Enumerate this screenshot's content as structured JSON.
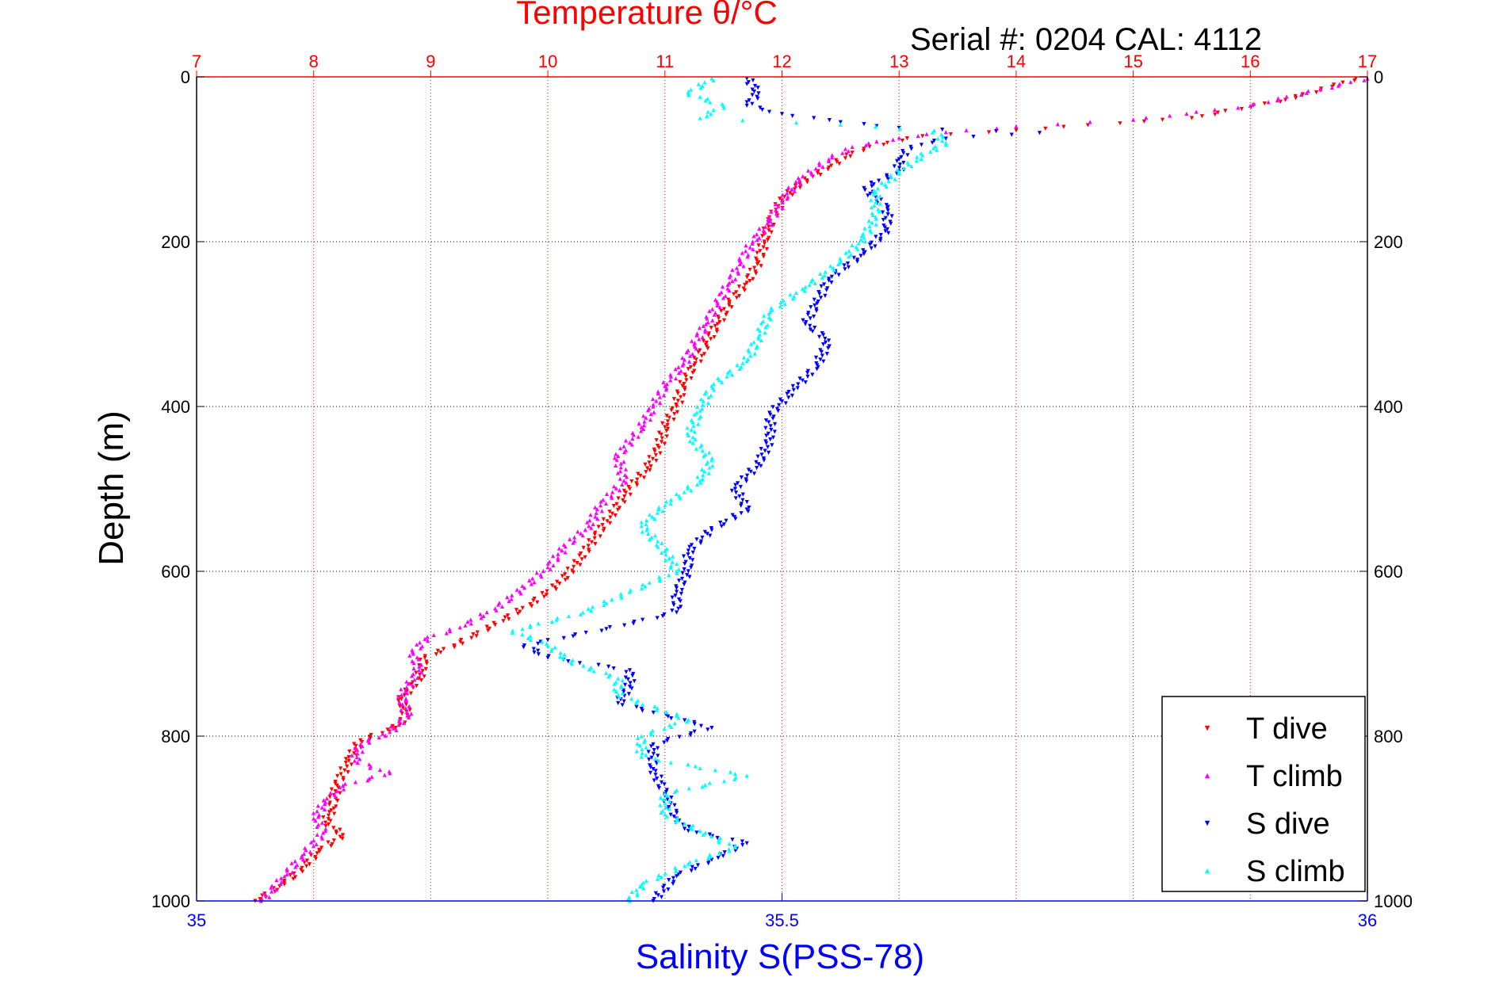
{
  "chart_data": {
    "type": "scatter",
    "title": "Temperature θ/°C",
    "subtitle": "Serial #: 0204  CAL: 4112",
    "ylabel": "Depth (m)",
    "xlabel": "Salinity S(PSS-78)",
    "grid": true,
    "legend_position": "bottom-right",
    "y_axis": {
      "label": "Depth (m)",
      "range": [
        0,
        1000
      ],
      "inverted": true,
      "ticks": [
        0,
        200,
        400,
        600,
        800,
        1000
      ]
    },
    "x_top_axis": {
      "quantity": "Temperature",
      "range": [
        7,
        17
      ],
      "ticks": [
        7,
        8,
        9,
        10,
        11,
        12,
        13,
        14,
        15,
        16,
        17
      ],
      "color": "#ff0000"
    },
    "x_bottom_axis": {
      "label": "Salinity S(PSS-78)",
      "range": [
        35,
        36
      ],
      "ticks": [
        35,
        35.5,
        36
      ],
      "tick_labels": [
        "35",
        "35.5",
        "36"
      ],
      "color": "#0000ff"
    },
    "series": [
      {
        "name": "T dive",
        "axis": "temperature",
        "color": "#ff0000",
        "marker": "down-triangle",
        "points": [
          [
            16.9,
            2
          ],
          [
            16.7,
            12
          ],
          [
            16.3,
            28
          ],
          [
            15.5,
            50
          ],
          [
            14.0,
            65
          ],
          [
            13.2,
            72
          ],
          [
            12.9,
            80
          ],
          [
            12.6,
            92
          ],
          [
            12.4,
            110
          ],
          [
            12.15,
            130
          ],
          [
            12.0,
            150
          ],
          [
            11.9,
            175
          ],
          [
            11.85,
            200
          ],
          [
            11.8,
            225
          ],
          [
            11.7,
            250
          ],
          [
            11.55,
            275
          ],
          [
            11.45,
            300
          ],
          [
            11.35,
            325
          ],
          [
            11.25,
            350
          ],
          [
            11.15,
            375
          ],
          [
            11.1,
            400
          ],
          [
            11.0,
            425
          ],
          [
            10.95,
            450
          ],
          [
            10.85,
            475
          ],
          [
            10.7,
            500
          ],
          [
            10.55,
            530
          ],
          [
            10.4,
            560
          ],
          [
            10.25,
            590
          ],
          [
            10.1,
            615
          ],
          [
            9.85,
            640
          ],
          [
            9.55,
            665
          ],
          [
            9.2,
            690
          ],
          [
            8.95,
            705
          ],
          [
            8.9,
            730
          ],
          [
            8.75,
            755
          ],
          [
            8.8,
            775
          ],
          [
            8.7,
            790
          ],
          [
            8.4,
            805
          ],
          [
            8.3,
            830
          ],
          [
            8.2,
            860
          ],
          [
            8.15,
            890
          ],
          [
            8.1,
            905
          ],
          [
            8.25,
            920
          ],
          [
            8.05,
            940
          ],
          [
            7.9,
            960
          ],
          [
            7.75,
            980
          ],
          [
            7.5,
            1000
          ]
        ]
      },
      {
        "name": "T climb",
        "axis": "temperature",
        "color": "#ff00ff",
        "marker": "up-triangle",
        "points": [
          [
            17.0,
            2
          ],
          [
            16.6,
            15
          ],
          [
            16.0,
            35
          ],
          [
            15.0,
            52
          ],
          [
            14.0,
            60
          ],
          [
            13.4,
            67
          ],
          [
            13.0,
            74
          ],
          [
            12.6,
            85
          ],
          [
            12.4,
            100
          ],
          [
            12.15,
            125
          ],
          [
            12.0,
            150
          ],
          [
            11.9,
            175
          ],
          [
            11.75,
            200
          ],
          [
            11.65,
            225
          ],
          [
            11.55,
            250
          ],
          [
            11.45,
            275
          ],
          [
            11.35,
            300
          ],
          [
            11.25,
            325
          ],
          [
            11.15,
            350
          ],
          [
            11.0,
            375
          ],
          [
            10.9,
            400
          ],
          [
            10.8,
            425
          ],
          [
            10.6,
            460
          ],
          [
            10.65,
            490
          ],
          [
            10.45,
            520
          ],
          [
            10.35,
            545
          ],
          [
            10.15,
            570
          ],
          [
            10.0,
            595
          ],
          [
            9.8,
            620
          ],
          [
            9.55,
            645
          ],
          [
            9.25,
            668
          ],
          [
            8.95,
            682
          ],
          [
            8.85,
            700
          ],
          [
            8.9,
            720
          ],
          [
            8.75,
            750
          ],
          [
            8.8,
            775
          ],
          [
            8.65,
            795
          ],
          [
            8.4,
            810
          ],
          [
            8.35,
            830
          ],
          [
            8.65,
            845
          ],
          [
            8.25,
            860
          ],
          [
            8.1,
            880
          ],
          [
            8.0,
            900
          ],
          [
            8.1,
            915
          ],
          [
            7.9,
            945
          ],
          [
            7.75,
            970
          ],
          [
            7.55,
            1000
          ]
        ]
      },
      {
        "name": "S dive",
        "axis": "salinity",
        "color": "#0000ff",
        "marker": "down-triangle",
        "points": [
          [
            35.47,
            2
          ],
          [
            35.48,
            20
          ],
          [
            35.47,
            35
          ],
          [
            35.5,
            45
          ],
          [
            35.55,
            55
          ],
          [
            35.6,
            62
          ],
          [
            35.72,
            68
          ],
          [
            35.64,
            75
          ],
          [
            35.61,
            85
          ],
          [
            35.6,
            100
          ],
          [
            35.6,
            115
          ],
          [
            35.57,
            135
          ],
          [
            35.59,
            160
          ],
          [
            35.59,
            185
          ],
          [
            35.57,
            215
          ],
          [
            35.54,
            245
          ],
          [
            35.53,
            275
          ],
          [
            35.52,
            300
          ],
          [
            35.54,
            320
          ],
          [
            35.53,
            350
          ],
          [
            35.51,
            380
          ],
          [
            35.49,
            410
          ],
          [
            35.49,
            440
          ],
          [
            35.48,
            470
          ],
          [
            35.46,
            500
          ],
          [
            35.47,
            525
          ],
          [
            35.44,
            550
          ],
          [
            35.42,
            575
          ],
          [
            35.42,
            600
          ],
          [
            35.41,
            625
          ],
          [
            35.41,
            650
          ],
          [
            35.35,
            670
          ],
          [
            35.28,
            690
          ],
          [
            35.3,
            705
          ],
          [
            35.37,
            720
          ],
          [
            35.37,
            740
          ],
          [
            35.36,
            760
          ],
          [
            35.44,
            790
          ],
          [
            35.39,
            810
          ],
          [
            35.39,
            840
          ],
          [
            35.4,
            870
          ],
          [
            35.41,
            900
          ],
          [
            35.42,
            915
          ],
          [
            35.47,
            930
          ],
          [
            35.44,
            950
          ],
          [
            35.41,
            970
          ],
          [
            35.39,
            1000
          ]
        ]
      },
      {
        "name": "S climb",
        "axis": "salinity",
        "color": "#00ffff",
        "marker": "up-triangle",
        "points": [
          [
            35.44,
            2
          ],
          [
            35.42,
            20
          ],
          [
            35.45,
            35
          ],
          [
            35.43,
            50
          ],
          [
            35.55,
            58
          ],
          [
            35.63,
            65
          ],
          [
            35.64,
            80
          ],
          [
            35.62,
            95
          ],
          [
            35.6,
            115
          ],
          [
            35.58,
            140
          ],
          [
            35.58,
            170
          ],
          [
            35.57,
            195
          ],
          [
            35.55,
            225
          ],
          [
            35.52,
            255
          ],
          [
            35.49,
            285
          ],
          [
            35.48,
            315
          ],
          [
            35.47,
            345
          ],
          [
            35.44,
            375
          ],
          [
            35.43,
            405
          ],
          [
            35.42,
            435
          ],
          [
            35.44,
            465
          ],
          [
            35.43,
            490
          ],
          [
            35.4,
            520
          ],
          [
            35.38,
            545
          ],
          [
            35.4,
            575
          ],
          [
            35.41,
            600
          ],
          [
            35.37,
            625
          ],
          [
            35.33,
            650
          ],
          [
            35.27,
            672
          ],
          [
            35.3,
            690
          ],
          [
            35.32,
            710
          ],
          [
            35.36,
            730
          ],
          [
            35.36,
            750
          ],
          [
            35.42,
            780
          ],
          [
            35.38,
            800
          ],
          [
            35.38,
            825
          ],
          [
            35.47,
            848
          ],
          [
            35.4,
            870
          ],
          [
            35.4,
            895
          ],
          [
            35.43,
            915
          ],
          [
            35.46,
            935
          ],
          [
            35.42,
            955
          ],
          [
            35.38,
            980
          ],
          [
            35.37,
            1000
          ]
        ]
      }
    ]
  }
}
